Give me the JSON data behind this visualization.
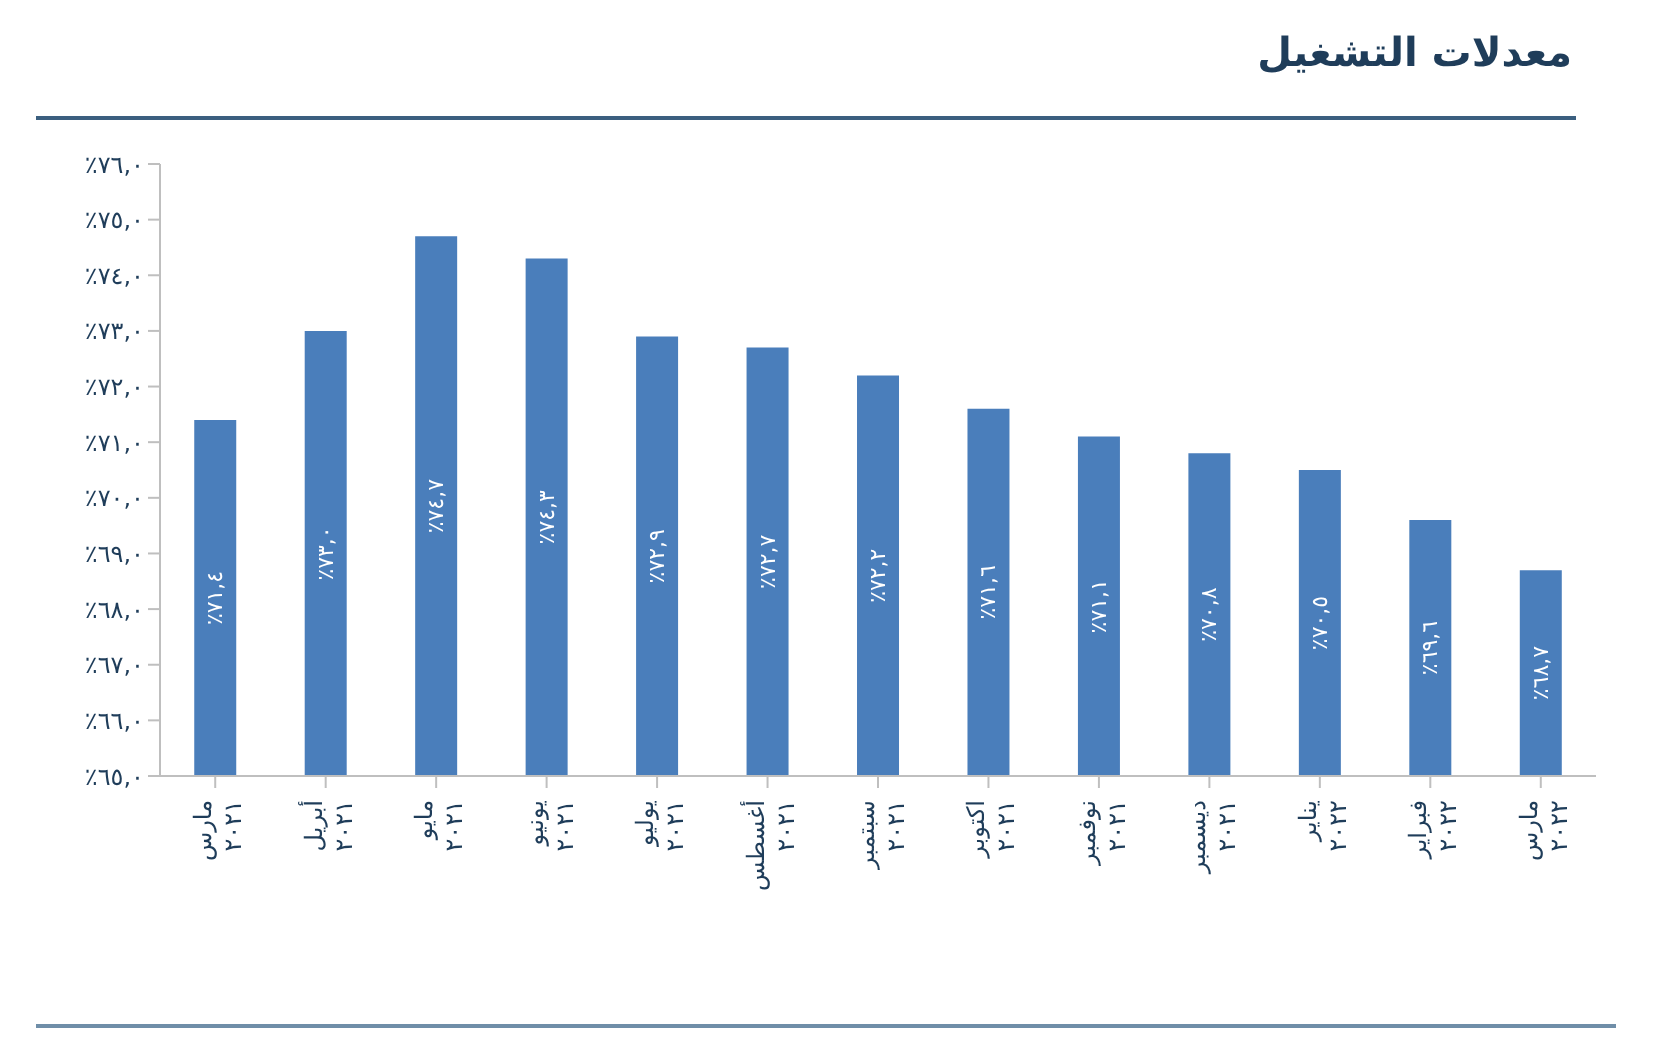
{
  "chart_data": {
    "type": "bar",
    "title": "معدلات التشغيل",
    "categories": [
      "مارس ٢٠٢١",
      "أبريل ٢٠٢١",
      "مايو ٢٠٢١",
      "يونيو ٢٠٢١",
      "يوليو ٢٠٢١",
      "أغسطس ٢٠٢١",
      "سبتمبر ٢٠٢١",
      "اكتوبر ٢٠٢١",
      "نوفمبر ٢٠٢١",
      "ديسمبر ٢٠٢١",
      "يناير ٢٠٢٢",
      "فبراير ٢٠٢٢",
      "مارس ٢٠٢٢"
    ],
    "values": [
      71.4,
      73.0,
      74.7,
      74.3,
      72.9,
      72.7,
      72.2,
      71.6,
      71.1,
      70.8,
      70.5,
      69.6,
      68.7
    ],
    "value_labels": [
      "٪٧١,٤",
      "٪٧٣,٠",
      "٪٧٤,٧",
      "٪٧٤,٣",
      "٪٧٢,٩",
      "٪٧٢,٧",
      "٪٧٢,٢",
      "٪٧١,٦",
      "٪٧١,١",
      "٪٧٠,٨",
      "٪٧٠,٥",
      "٪٦٩,٦",
      "٪٦٨,٧"
    ],
    "color": "#4a7ebb",
    "ylim": [
      65,
      76
    ],
    "yticks": [
      {
        "value": 65,
        "label": "٪٦٥,٠"
      },
      {
        "value": 66,
        "label": "٪٦٦,٠"
      },
      {
        "value": 67,
        "label": "٪٦٧,٠"
      },
      {
        "value": 68,
        "label": "٪٦٨,٠"
      },
      {
        "value": 69,
        "label": "٪٦٩,٠"
      },
      {
        "value": 70,
        "label": "٪٧٠,٠"
      },
      {
        "value": 71,
        "label": "٪٧١,٠"
      },
      {
        "value": 72,
        "label": "٪٧٢,٠"
      },
      {
        "value": 73,
        "label": "٪٧٣,٠"
      },
      {
        "value": 74,
        "label": "٪٧٤,٠"
      },
      {
        "value": 75,
        "label": "٪٧٥,٠"
      },
      {
        "value": 76,
        "label": "٪٧٦,٠"
      }
    ]
  }
}
